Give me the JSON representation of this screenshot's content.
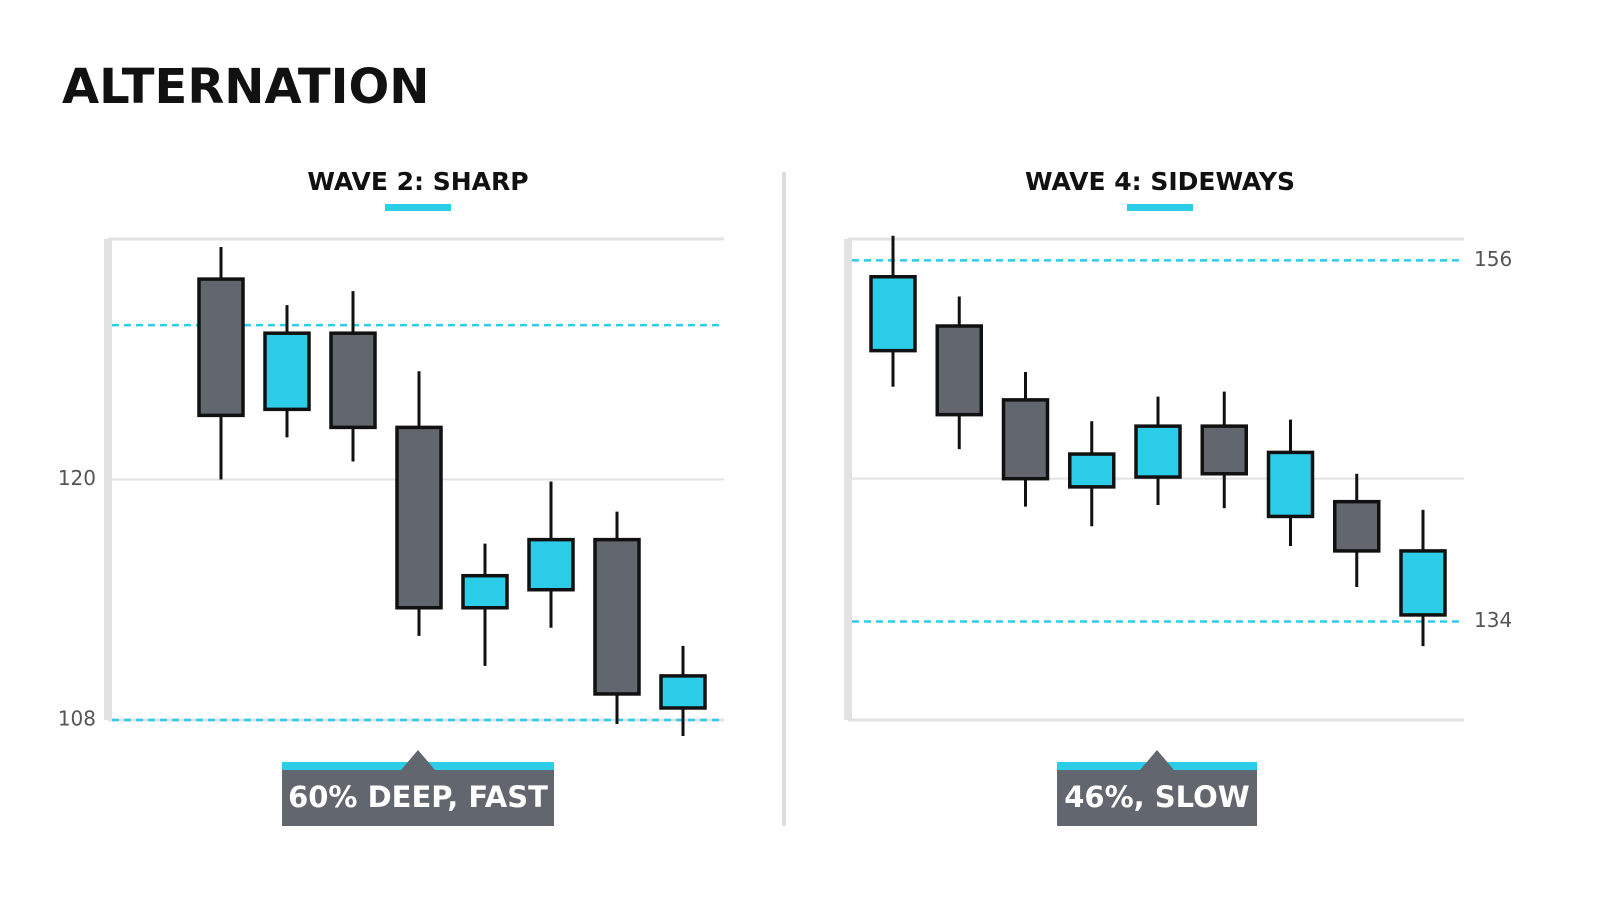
{
  "title": "ALTERNATION",
  "chart_data": [
    {
      "type": "candlestick",
      "title": "WAVE 2: SHARP",
      "annotation": "60% DEEP, FAST",
      "open": [
        130.0,
        123.5,
        127.3,
        122.6,
        113.6,
        114.5,
        117.0,
        108.6
      ],
      "high": [
        131.6,
        128.7,
        129.4,
        125.4,
        116.8,
        119.9,
        118.4,
        111.7
      ],
      "low": [
        120.0,
        122.1,
        120.9,
        112.2,
        110.7,
        112.6,
        107.8,
        107.2
      ],
      "close": [
        123.2,
        127.3,
        122.6,
        113.6,
        115.2,
        117.0,
        109.3,
        110.2
      ],
      "up_color": "#2ccde8",
      "down_color": "#62666e",
      "ylim": [
        108,
        132
      ],
      "yticks": [
        108,
        120
      ],
      "yaxis_side": "left",
      "dashed_levels": [
        127.7,
        108
      ],
      "solid_levels": [
        120
      ]
    },
    {
      "type": "candlestick",
      "title": "WAVE 4: SIDEWAYS",
      "annotation": "46%, SLOW",
      "open": [
        150.5,
        152.0,
        147.5,
        142.2,
        142.8,
        145.9,
        140.4,
        141.3,
        134.4
      ],
      "high": [
        157.5,
        153.8,
        149.2,
        146.2,
        147.7,
        148.0,
        146.3,
        143.0,
        140.8
      ],
      "low": [
        148.3,
        144.5,
        141.0,
        139.8,
        141.1,
        140.9,
        138.6,
        136.1,
        132.5
      ],
      "close": [
        155.0,
        146.6,
        142.7,
        144.2,
        145.9,
        143.0,
        144.3,
        138.3,
        138.3
      ],
      "up_color": "#2ccde8",
      "down_color": "#62666e",
      "ylim": [
        128,
        157.3
      ],
      "yticks": [
        134,
        156
      ],
      "yaxis_side": "right",
      "dashed_levels": [
        156,
        134
      ],
      "solid_levels": [
        142.7
      ]
    }
  ]
}
